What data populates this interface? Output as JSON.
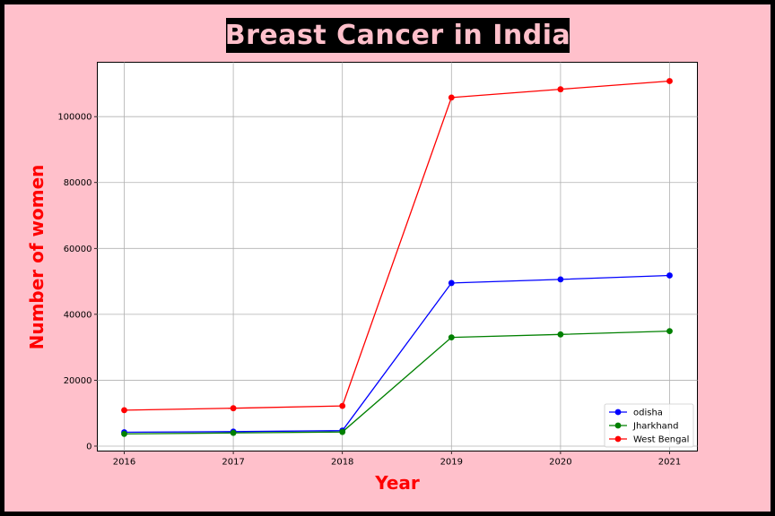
{
  "chart_data": {
    "type": "line",
    "title": "Breast Cancer in India",
    "xlabel": "Year",
    "ylabel": "Number of women",
    "x": [
      2016,
      2017,
      2018,
      2019,
      2020,
      2021
    ],
    "ylim": [
      -1500,
      116500
    ],
    "yticks": [
      0,
      20000,
      40000,
      60000,
      80000,
      100000
    ],
    "grid": true,
    "legend_position": "lower right",
    "series": [
      {
        "name": "odisha",
        "color": "#0000ff",
        "values": [
          4200,
          4400,
          4700,
          49500,
          50600,
          51800
        ]
      },
      {
        "name": "Jharkhand",
        "color": "#008000",
        "values": [
          3700,
          4000,
          4300,
          33000,
          33900,
          34900
        ]
      },
      {
        "name": "West Bengal",
        "color": "#ff0000",
        "values": [
          10900,
          11500,
          12200,
          105800,
          108300,
          110800
        ]
      }
    ],
    "colors": {
      "background": "#ffc0cb",
      "border": "#000000",
      "title_box": "#000000",
      "title_text": "#ffc0cb",
      "axis_label": "#ff0000"
    }
  }
}
